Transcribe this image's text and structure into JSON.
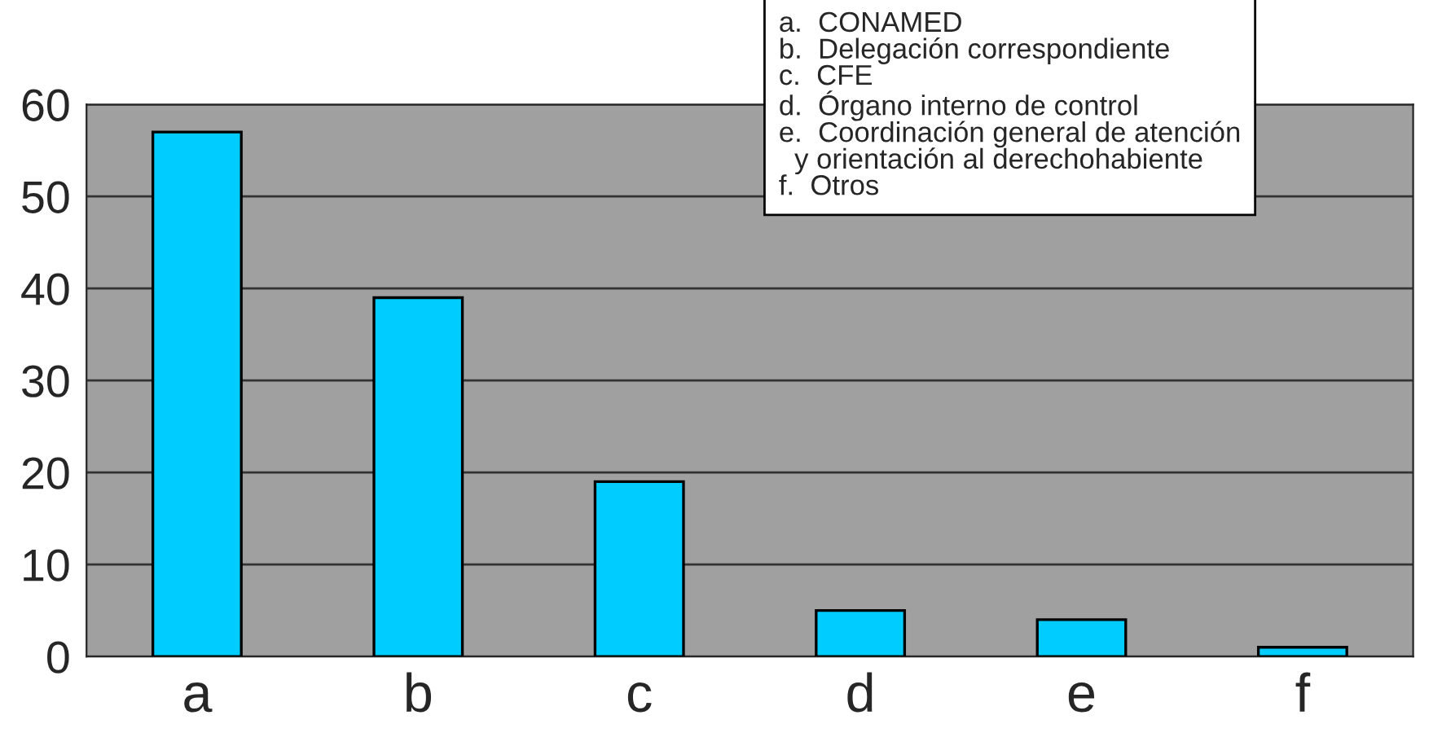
{
  "chart_data": {
    "type": "bar",
    "categories": [
      "a",
      "b",
      "c",
      "d",
      "e",
      "f"
    ],
    "values": [
      57,
      39,
      19,
      5,
      4,
      1
    ],
    "color": "#00ccff",
    "ylim": [
      0,
      60
    ],
    "yticks": [
      0,
      10,
      20,
      30,
      40,
      50,
      60
    ],
    "grid": "y",
    "annotations": [
      "a.\tCONAMED",
      "b.\tDelegación correspondiente",
      "c.\tCFE",
      "d.\tÓrgano interno de control",
      "e.\tCoordinación general de atención\n\ty orientación al derechohabiente",
      "f.\tOtros"
    ]
  }
}
